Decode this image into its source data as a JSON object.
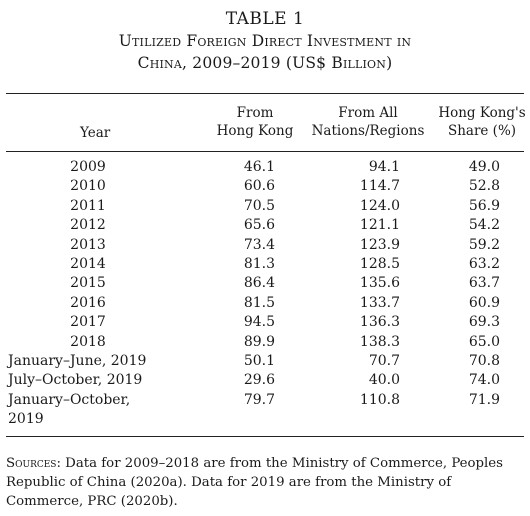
{
  "title": {
    "label": "TABLE 1",
    "caption_line1": "Utilized Foreign Direct Investment in",
    "caption_line2": "China, 2009–2019 (US$ Billion)"
  },
  "headers": {
    "year": "Year",
    "hk_line1": "From",
    "hk_line2": "Hong Kong",
    "all_line1": "From All",
    "all_line2": "Nations/Regions",
    "share_line1": "Hong Kong's",
    "share_line2": "Share (%)"
  },
  "rows": [
    {
      "year": "2009",
      "hk": "46.1",
      "all": "94.1",
      "share": "49.0"
    },
    {
      "year": "2010",
      "hk": "60.6",
      "all": "114.7",
      "share": "52.8"
    },
    {
      "year": "2011",
      "hk": "70.5",
      "all": "124.0",
      "share": "56.9"
    },
    {
      "year": "2012",
      "hk": "65.6",
      "all": "121.1",
      "share": "54.2"
    },
    {
      "year": "2013",
      "hk": "73.4",
      "all": "123.9",
      "share": "59.2"
    },
    {
      "year": "2014",
      "hk": "81.3",
      "all": "128.5",
      "share": "63.2"
    },
    {
      "year": "2015",
      "hk": "86.4",
      "all": "135.6",
      "share": "63.7"
    },
    {
      "year": "2016",
      "hk": "81.5",
      "all": "133.7",
      "share": "60.9"
    },
    {
      "year": "2017",
      "hk": "94.5",
      "all": "136.3",
      "share": "69.3"
    },
    {
      "year": "2018",
      "hk": "89.9",
      "all": "138.3",
      "share": "65.0"
    },
    {
      "year": "January–June, 2019",
      "hk": "50.1",
      "all": "70.7",
      "share": "70.8"
    },
    {
      "year": "July–October, 2019",
      "hk": "29.6",
      "all": "40.0",
      "share": "74.0"
    },
    {
      "year": "January–October, 2019",
      "hk": "79.7",
      "all": "110.8",
      "share": "71.9"
    }
  ],
  "sources": {
    "label": "Sources:",
    "text": " Data for 2009–2018 are from the Ministry of Commerce, Peoples Republic of China (2020a). Data for 2019 are from the Ministry of Commerce, PRC (2020b)."
  }
}
